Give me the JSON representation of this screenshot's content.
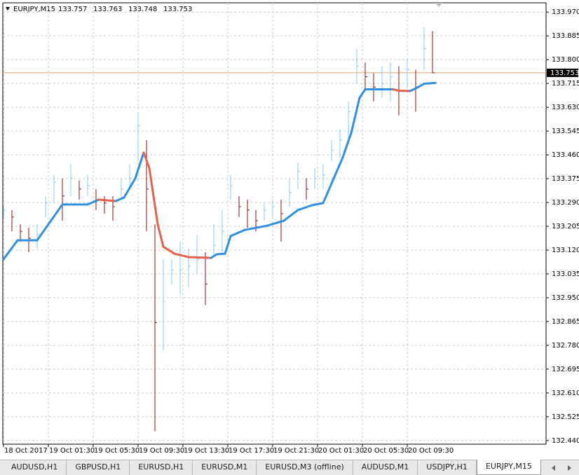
{
  "chart_data": {
    "type": "hlc",
    "title": "EURJPY,M15",
    "quote": [
      133.757,
      133.763,
      133.748,
      133.753
    ],
    "x": [
      0,
      3,
      6,
      9,
      12,
      15,
      18,
      21,
      24,
      27,
      30,
      33,
      36,
      39,
      42,
      45,
      48,
      51,
      54,
      57,
      60,
      63,
      66,
      69,
      72,
      75,
      78,
      81,
      84,
      87,
      90,
      93,
      96,
      99,
      102,
      105,
      108,
      111,
      114,
      117,
      120,
      123,
      126,
      129,
      132,
      135,
      138,
      141,
      144,
      147,
      150,
      153
    ],
    "high": [
      133.275,
      133.263,
      133.212,
      133.2,
      133.212,
      133.313,
      133.388,
      133.376,
      133.426,
      133.368,
      133.388,
      133.338,
      133.313,
      133.313,
      133.376,
      133.426,
      133.614,
      133.513,
      133.212,
      133.087,
      133.087,
      133.15,
      133.125,
      133.175,
      133.112,
      133.212,
      133.263,
      133.388,
      133.313,
      133.3,
      133.263,
      133.288,
      133.3,
      133.3,
      133.376,
      133.433,
      133.376,
      133.413,
      133.426,
      133.513,
      133.551,
      133.651,
      133.839,
      133.789,
      133.752,
      133.777,
      133.789,
      133.777,
      133.802,
      133.764,
      133.915,
      133.902
    ],
    "low": [
      133.238,
      133.187,
      133.15,
      133.112,
      133.125,
      133.238,
      133.288,
      133.225,
      133.313,
      133.3,
      133.313,
      133.263,
      133.25,
      133.225,
      133.3,
      133.338,
      133.438,
      133.187,
      132.473,
      132.761,
      132.999,
      132.962,
      132.987,
      133.037,
      132.924,
      133.1,
      133.112,
      133.3,
      133.238,
      133.2,
      133.187,
      133.225,
      133.238,
      133.15,
      133.275,
      133.338,
      133.3,
      133.338,
      133.338,
      133.438,
      133.451,
      133.513,
      133.714,
      133.689,
      133.651,
      133.664,
      133.651,
      133.601,
      133.702,
      133.614,
      133.764,
      133.752
    ],
    "close": [
      133.263,
      133.238,
      133.187,
      133.162,
      133.175,
      133.288,
      133.363,
      133.313,
      133.376,
      133.338,
      133.35,
      133.3,
      133.288,
      133.275,
      133.338,
      133.376,
      133.564,
      133.338,
      132.861,
      132.937,
      133.049,
      133.049,
      133.062,
      133.087,
      132.999,
      133.137,
      133.187,
      133.35,
      133.275,
      133.263,
      133.225,
      133.263,
      133.275,
      133.25,
      133.325,
      133.401,
      133.338,
      133.376,
      133.388,
      133.476,
      133.513,
      133.614,
      133.777,
      133.739,
      133.702,
      133.714,
      133.739,
      133.689,
      133.764,
      133.702,
      133.839,
      133.753
    ],
    "up_color": "#7fc8f8",
    "down_color": "#8b1010",
    "ma": {
      "x": [
        0,
        5,
        12,
        21,
        30,
        34,
        40,
        43,
        47,
        50,
        52,
        55,
        57,
        61,
        66,
        74,
        76,
        79,
        81,
        86,
        94,
        100,
        105,
        110,
        114,
        117,
        121,
        124,
        127,
        129,
        139,
        141,
        145,
        147,
        150,
        154
      ],
      "values": [
        133.087,
        133.155,
        133.155,
        133.283,
        133.283,
        133.3,
        133.295,
        133.308,
        133.376,
        133.468,
        133.413,
        133.212,
        133.132,
        133.107,
        133.095,
        133.092,
        133.105,
        133.107,
        133.17,
        133.192,
        133.207,
        133.225,
        133.263,
        133.28,
        133.288,
        133.358,
        133.451,
        133.538,
        133.664,
        133.694,
        133.694,
        133.689,
        133.688,
        133.697,
        133.714,
        133.717
      ],
      "up_color": "#2f8fe0",
      "down_color": "#e8604a"
    },
    "current_price": 133.753,
    "price_line_color": "#e0a070",
    "ylim": [
      132.427,
      134.003
    ],
    "yticks": [
      {
        "value": 133.97,
        "label": "133.970"
      },
      133.885,
      {
        "value": 133.8,
        "label": "133.800"
      },
      133.715,
      {
        "value": 133.63,
        "label": "133.630"
      },
      133.545,
      {
        "value": 133.46,
        "label": "133.460"
      },
      133.375,
      {
        "value": 133.29,
        "label": "133.290"
      },
      133.205,
      {
        "value": 133.12,
        "label": "133.120"
      },
      133.035,
      {
        "value": 132.95,
        "label": "132.950"
      },
      132.865,
      {
        "value": 132.78,
        "label": "132.780"
      },
      132.695,
      {
        "value": 132.61,
        "label": "132.610"
      },
      132.525,
      {
        "value": 132.44,
        "label": "132.440"
      }
    ],
    "xlim": [
      -0.25,
      193.5
    ],
    "xticks": [
      {
        "value": 0,
        "label": "18 Oct 2017"
      },
      {
        "value": 16,
        "label": "19 Oct 01:30"
      },
      {
        "value": 32,
        "label": "19 Oct 05:30"
      },
      {
        "value": 48,
        "label": "19 Oct 09:30"
      },
      {
        "value": 64,
        "label": "19 Oct 13:30"
      },
      {
        "value": 80,
        "label": "19 Oct 17:30"
      },
      {
        "value": 96,
        "label": "19 Oct 21:30"
      },
      {
        "value": 112,
        "label": "20 Oct 01:30"
      },
      {
        "value": 128,
        "label": "20 Oct 05:30"
      },
      {
        "value": 144,
        "label": "20 Oct 09:30"
      }
    ],
    "grid": true
  },
  "tabs": [
    "AUDUSD,H1",
    "GBPUSD,H1",
    "EURUSD,H1",
    "EURUSD,M1",
    "EURUSD,M3 (offline)",
    "AUDUSD,M1",
    "USDJPY,H1",
    "EURJPY,M15"
  ]
}
